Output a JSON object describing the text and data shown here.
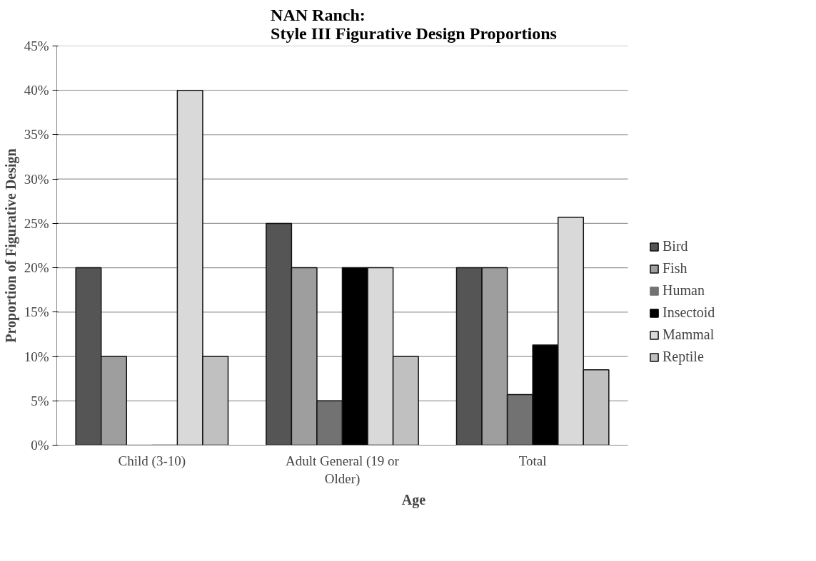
{
  "chart_data": {
    "type": "bar",
    "title": "NAN Ranch:\nStyle III Figurative Design Proportions",
    "xlabel": "Age",
    "ylabel": "Proportion of Figurative Design",
    "categories": [
      "Child (3-10)",
      "Adult General (19 or Older)",
      "Total"
    ],
    "series": [
      {
        "name": "Bird",
        "color": "#555555",
        "values": [
          20,
          25,
          20
        ]
      },
      {
        "name": "Fish",
        "color": "#9e9e9e",
        "values": [
          10,
          20,
          20
        ]
      },
      {
        "name": "Human",
        "color": "#727272",
        "values": [
          0,
          5,
          5.7
        ]
      },
      {
        "name": "Insectoid",
        "color": "#000000",
        "values": [
          0,
          20,
          11.3
        ]
      },
      {
        "name": "Mammal",
        "color": "#d9d9d9",
        "values": [
          40,
          20,
          25.7
        ]
      },
      {
        "name": "Reptile",
        "color": "#c0c0c0",
        "values": [
          10,
          10,
          8.5
        ]
      }
    ],
    "ylim": [
      0,
      45
    ],
    "yticks": [
      {
        "value": 0,
        "label": "0%"
      },
      {
        "value": 5,
        "label": "5%"
      },
      {
        "value": 10,
        "label": "10%"
      },
      {
        "value": 15,
        "label": "15%"
      },
      {
        "value": 20,
        "label": "20%"
      },
      {
        "value": 25,
        "label": "25%"
      },
      {
        "value": 30,
        "label": "30%"
      },
      {
        "value": 35,
        "label": "35%"
      },
      {
        "value": 40,
        "label": "40%"
      },
      {
        "value": 45,
        "label": "45%"
      }
    ],
    "grid": "y",
    "legend": "right"
  }
}
